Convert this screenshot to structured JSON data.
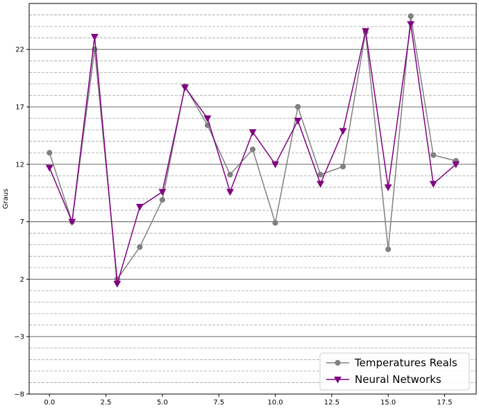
{
  "chart_data": {
    "type": "line",
    "ylabel": "Graus",
    "xlabel": "",
    "xlim": [
      -0.9,
      18.9
    ],
    "ylim": [
      -8,
      26
    ],
    "xticks": [
      0.0,
      2.5,
      5.0,
      7.5,
      10.0,
      12.5,
      15.0,
      17.5
    ],
    "xtick_labels": [
      "0.0",
      "2.5",
      "5.0",
      "7.5",
      "10.0",
      "12.5",
      "15.0",
      "17.5"
    ],
    "yticks": [
      -8,
      -3,
      2,
      7,
      12,
      17,
      22
    ],
    "ytick_labels": [
      "−8",
      "−3",
      "2",
      "7",
      "12",
      "17",
      "22"
    ],
    "major_grid": "solid",
    "minor_grid": "dashed",
    "minor_step": 1,
    "legend_position": "lower-right",
    "x": [
      0,
      1,
      2,
      3,
      4,
      5,
      6,
      7,
      8,
      9,
      10,
      11,
      12,
      13,
      14,
      15,
      16,
      17,
      18
    ],
    "series": [
      {
        "name": "Temperatures Reals",
        "color": "#808080",
        "marker": "circle",
        "values": [
          13.0,
          7.0,
          22.0,
          2.0,
          4.8,
          8.9,
          18.8,
          15.4,
          11.1,
          13.3,
          6.9,
          17.0,
          11.1,
          11.8,
          23.5,
          4.6,
          24.9,
          12.8,
          12.3
        ]
      },
      {
        "name": "Neural Networks",
        "color": "#800080",
        "marker": "triangle-down",
        "values": [
          11.7,
          7.0,
          23.1,
          1.6,
          8.3,
          9.6,
          18.7,
          16.0,
          9.6,
          14.8,
          12.0,
          15.8,
          10.3,
          14.9,
          23.6,
          10.0,
          24.2,
          10.3,
          12.0
        ]
      }
    ]
  }
}
